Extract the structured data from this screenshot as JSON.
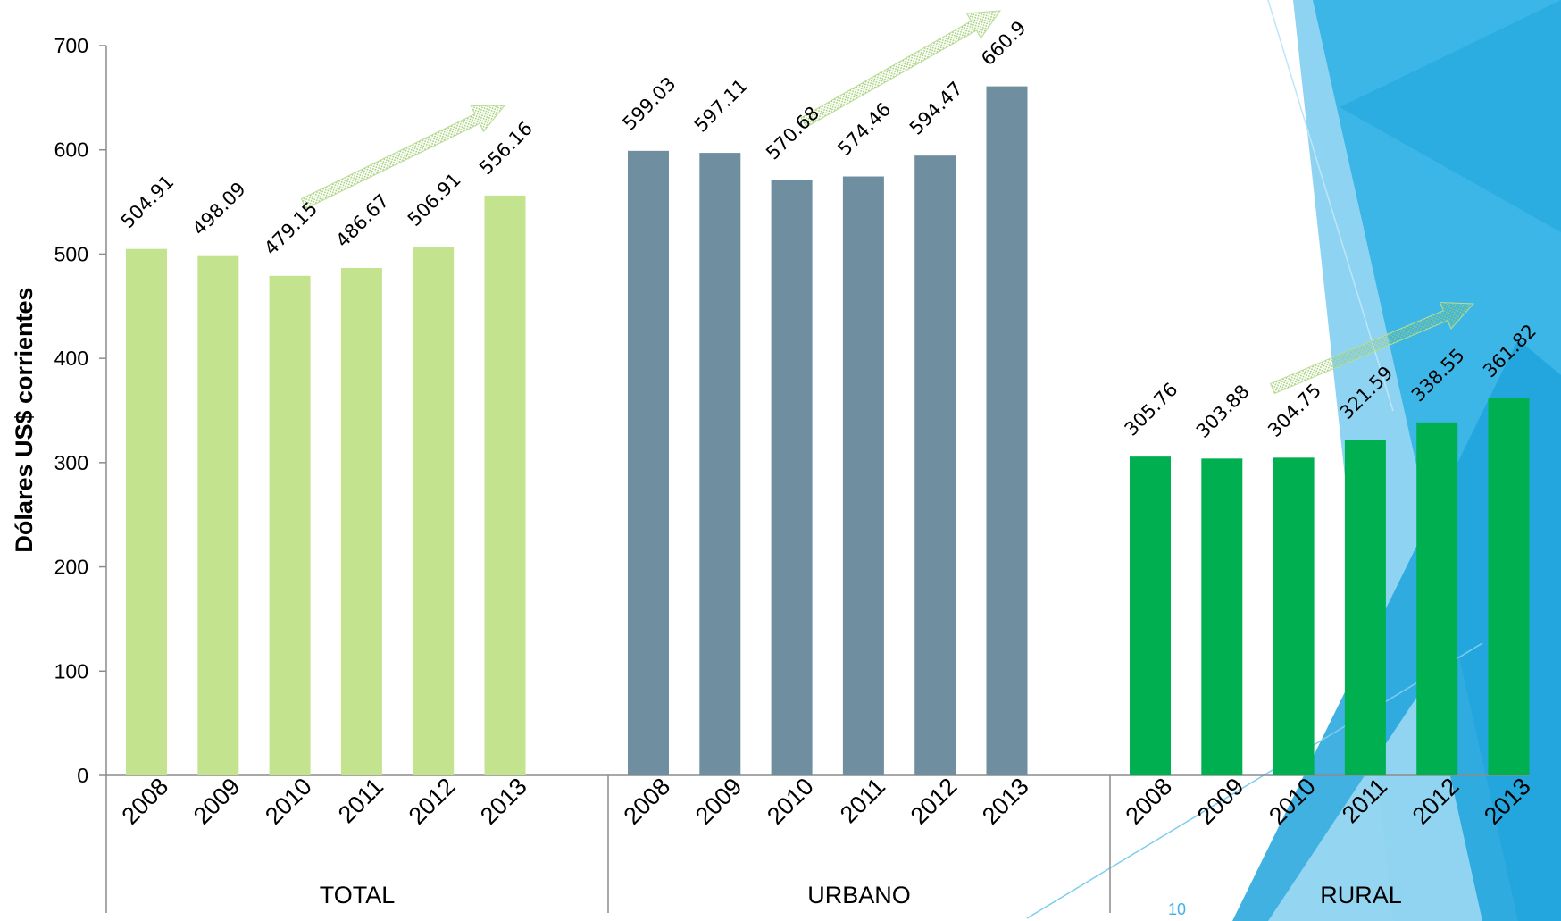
{
  "chart_data": {
    "type": "bar",
    "ylabel": "Dólares US$ corrientes",
    "xlabel": "",
    "ylim": [
      0,
      700
    ],
    "yticks": [
      0,
      100,
      200,
      300,
      400,
      500,
      600,
      700
    ],
    "groups": [
      {
        "name": "TOTAL",
        "color": "#c4e38f",
        "categories": [
          "2008",
          "2009",
          "2010",
          "2011",
          "2012",
          "2013"
        ],
        "values": [
          504.91,
          498.09,
          479.15,
          486.67,
          506.91,
          556.16
        ]
      },
      {
        "name": "URBANO",
        "color": "#6f8fa0",
        "categories": [
          "2008",
          "2009",
          "2010",
          "2011",
          "2012",
          "2013"
        ],
        "values": [
          599.03,
          597.11,
          570.68,
          574.46,
          594.47,
          660.9
        ]
      },
      {
        "name": "RURAL",
        "color": "#00b050",
        "categories": [
          "2008",
          "2009",
          "2010",
          "2011",
          "2012",
          "2013"
        ],
        "values": [
          305.76,
          303.88,
          304.75,
          321.59,
          338.55,
          361.82
        ]
      }
    ],
    "grid": false,
    "legend": "none"
  },
  "slide": {
    "page_number": "10",
    "accent_color": "#1fa3dc"
  }
}
